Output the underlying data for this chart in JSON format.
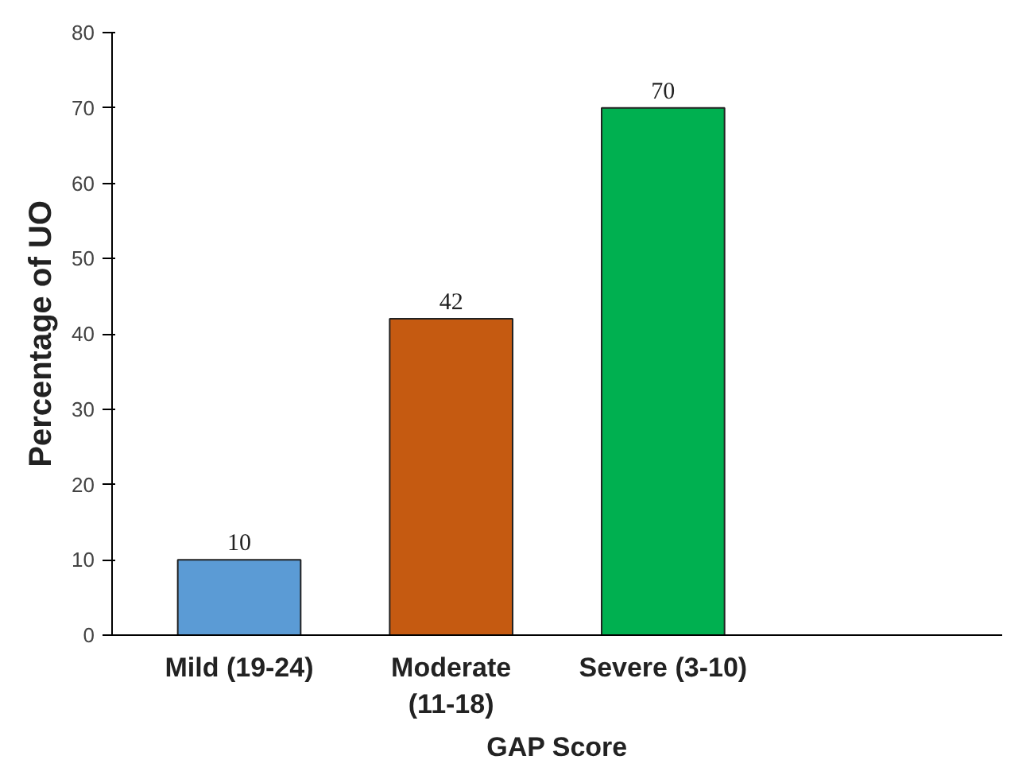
{
  "chart_data": {
    "type": "bar",
    "xlabel": "GAP Score",
    "ylabel": "Percentage of UO",
    "categories": [
      "Mild (19-24)",
      "Moderate\n(11-18)",
      "Severe (3-10)",
      null
    ],
    "values": [
      10,
      42,
      70,
      null
    ],
    "colors": [
      "#5b9bd5",
      "#c55a11",
      "#00b050",
      "#888888"
    ],
    "ylim": [
      0,
      80
    ],
    "yticks": [
      0,
      10,
      20,
      30,
      40,
      50,
      60,
      70,
      80
    ],
    "grid": false,
    "data_labels": true
  }
}
